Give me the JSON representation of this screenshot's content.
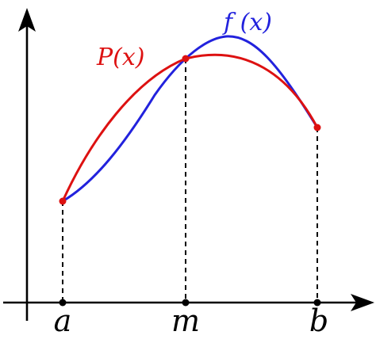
{
  "curves": {
    "f": {
      "label": "f (x)",
      "color": "#2222dd"
    },
    "p": {
      "label": "P(x)",
      "color": "#dd1111"
    }
  },
  "ticks": {
    "a": "a",
    "m": "m",
    "b": "b"
  },
  "colors": {
    "axes": "#000000",
    "interpolation_points": "#dd1111"
  }
}
